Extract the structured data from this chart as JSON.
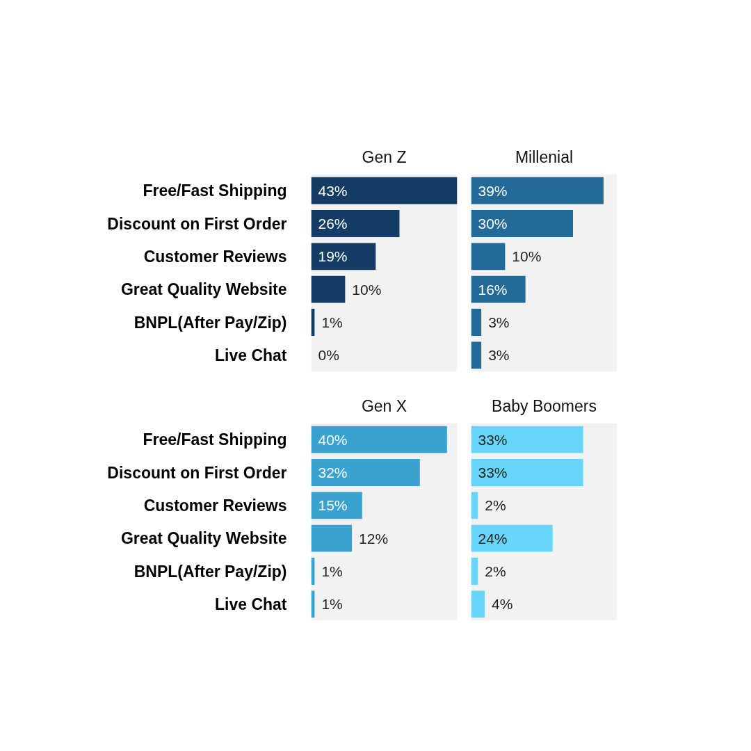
{
  "chart_data": [
    {
      "type": "bar",
      "orientation": "horizontal",
      "title": "Gen Z",
      "categories": [
        "Free/Fast Shipping",
        "Discount on First Order",
        "Customer Reviews",
        "Great Quality Website",
        "BNPL(After Pay/Zip)",
        "Live Chat"
      ],
      "values": [
        43,
        26,
        19,
        10,
        1,
        0
      ],
      "value_labels": [
        "43%",
        "26%",
        "19%",
        "10%",
        "1%",
        "0%"
      ],
      "color": "#143c64",
      "xlim": [
        0,
        43
      ],
      "bands": [
        {
          "axis": "x",
          "from": 0,
          "to": 43,
          "color": "#f2f2f2"
        }
      ],
      "tick_labels": "y"
    },
    {
      "type": "bar",
      "orientation": "horizontal",
      "title": "Millenial",
      "categories": [
        null,
        null,
        null,
        null,
        null,
        null
      ],
      "values": [
        39,
        30,
        10,
        16,
        3,
        3
      ],
      "value_labels": [
        "39%",
        "30%",
        "10%",
        "16%",
        "3%",
        "3%"
      ],
      "color": "#246a98",
      "xlim": [
        0,
        43
      ],
      "bands": [
        {
          "axis": "x",
          "from": 0,
          "to": 43,
          "color": "#f2f2f2"
        }
      ],
      "tick_labels": "y"
    },
    {
      "type": "bar",
      "orientation": "horizontal",
      "title": "Gen X",
      "categories": [
        "Free/Fast Shipping",
        "Discount on First Order",
        "Customer Reviews",
        "Great Quality Website",
        "BNPL(After Pay/Zip)",
        "Live Chat"
      ],
      "values": [
        40,
        32,
        15,
        12,
        1,
        1
      ],
      "value_labels": [
        "40%",
        "32%",
        "15%",
        "12%",
        "1%",
        "1%"
      ],
      "color": "#3aa2cf",
      "xlim": [
        0,
        43
      ],
      "bands": [
        {
          "axis": "x",
          "from": 0,
          "to": 43,
          "color": "#f2f2f2"
        }
      ],
      "tick_labels": "y"
    },
    {
      "type": "bar",
      "orientation": "horizontal",
      "title": "Baby Boomers",
      "categories": [
        null,
        null,
        null,
        null,
        null,
        null
      ],
      "values": [
        33,
        33,
        2,
        24,
        2,
        4
      ],
      "value_labels": [
        "33%",
        "33%",
        "2%",
        "24%",
        "2%",
        "4%"
      ],
      "color": "#68d6fa",
      "xlim": [
        0,
        43
      ],
      "bands": [
        {
          "axis": "x",
          "from": 0,
          "to": 43,
          "color": "#f2f2f2"
        }
      ],
      "tick_labels": "y"
    }
  ]
}
